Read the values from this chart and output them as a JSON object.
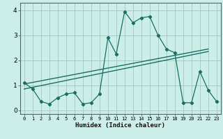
{
  "title": "",
  "xlabel": "Humidex (Indice chaleur)",
  "ylabel": "",
  "bg_color": "#cceee8",
  "grid_color": "#c8a8b8",
  "line_color": "#1a6e64",
  "xlim": [
    -0.5,
    23.5
  ],
  "ylim": [
    -0.15,
    4.3
  ],
  "line1_x": [
    0,
    1,
    2,
    3,
    4,
    5,
    6,
    7,
    8,
    9,
    10,
    11,
    12,
    13,
    14,
    15,
    16,
    17,
    18,
    19,
    20,
    21,
    22,
    23
  ],
  "line1_y": [
    1.1,
    0.85,
    0.35,
    0.25,
    0.5,
    0.65,
    0.7,
    0.25,
    0.3,
    0.65,
    2.9,
    2.25,
    3.95,
    3.5,
    3.7,
    3.75,
    3.0,
    2.45,
    2.3,
    0.3,
    0.3,
    1.55,
    0.8,
    0.35
  ],
  "trend_x": [
    0,
    22
  ],
  "trend_y": [
    0.85,
    2.35
  ],
  "trend2_x": [
    0,
    22
  ],
  "trend2_y": [
    1.05,
    2.45
  ]
}
